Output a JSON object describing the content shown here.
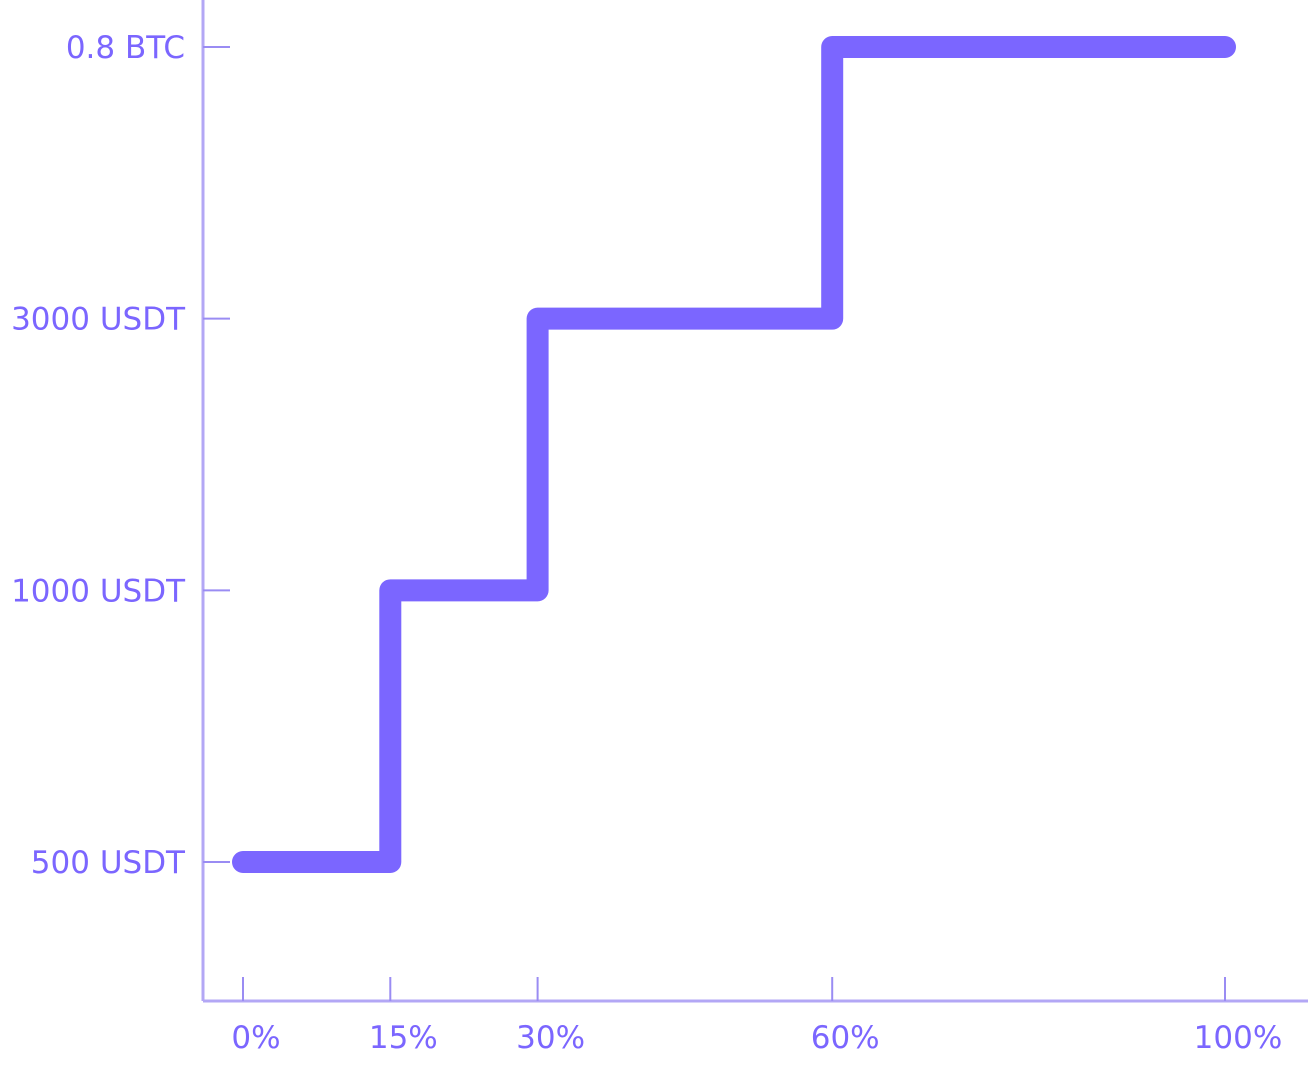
{
  "chart_data": {
    "type": "line",
    "interpolation": "step-after",
    "title": "",
    "xlabel": "",
    "ylabel": "",
    "x_ticks": [
      {
        "value": 0,
        "label": "0%"
      },
      {
        "value": 15,
        "label": "15%"
      },
      {
        "value": 30,
        "label": "30%"
      },
      {
        "value": 60,
        "label": "60%"
      },
      {
        "value": 100,
        "label": "100%"
      }
    ],
    "y_categories": [
      "500 USDT",
      "1000 USDT",
      "3000 USDT",
      "0.8 BTC"
    ],
    "series": [
      {
        "color": "#7b66ff",
        "points": [
          {
            "x": 0,
            "y": "500 USDT"
          },
          {
            "x": 15,
            "y": "1000 USDT"
          },
          {
            "x": 30,
            "y": "3000 USDT"
          },
          {
            "x": 60,
            "y": "0.8 BTC"
          },
          {
            "x": 100,
            "y": "0.8 BTC"
          }
        ]
      }
    ],
    "xlim": [
      0,
      100
    ],
    "grid": false,
    "legend": "none",
    "colors": {
      "axis": "#b3a7f5",
      "tick": "#9a8cf3",
      "label": "#7b66ff"
    }
  }
}
